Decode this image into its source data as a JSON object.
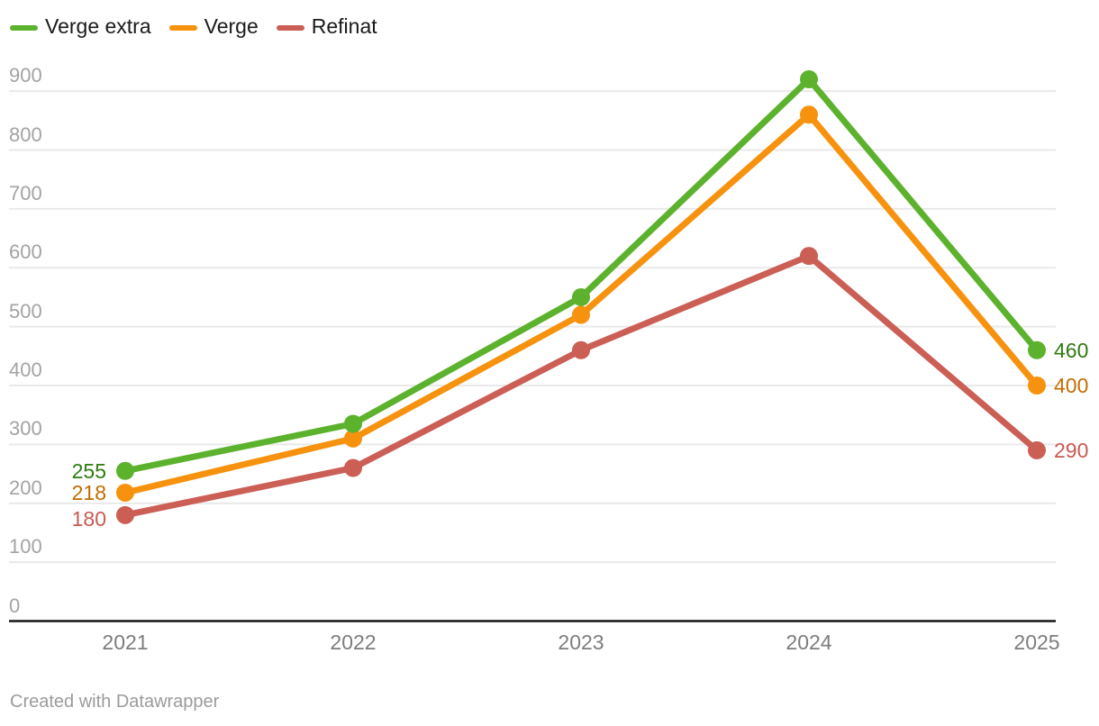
{
  "chart_data": {
    "type": "line",
    "x": [
      "2021",
      "2022",
      "2023",
      "2024",
      "2025"
    ],
    "series": [
      {
        "name": "Verge extra",
        "color": "#5cb22d",
        "label_color": "#2e7c10",
        "values": [
          255,
          335,
          550,
          920,
          460
        ],
        "first_label": "255",
        "last_label": "460"
      },
      {
        "name": "Verge",
        "color": "#f6920e",
        "label_color": "#c16d00",
        "values": [
          218,
          310,
          520,
          860,
          400
        ],
        "first_label": "218",
        "last_label": "400"
      },
      {
        "name": "Refinat",
        "color": "#cb5f56",
        "label_color": "#c85a52",
        "values": [
          180,
          260,
          460,
          620,
          290
        ],
        "first_label": "180",
        "last_label": "290"
      }
    ],
    "yticks": [
      0,
      100,
      200,
      300,
      400,
      500,
      600,
      700,
      800,
      900
    ],
    "ylim": [
      0,
      940
    ],
    "xlabel": "",
    "ylabel": "",
    "title": "",
    "grid": true,
    "legend_position": "top-left",
    "colors": {
      "gridline": "#e9e9e9",
      "baseline": "#161616",
      "ytick_text": "#a3a3a3",
      "xtick_text": "#7d7d7d",
      "legend_text": "#1a1a1a"
    }
  },
  "footer": {
    "credit": "Created with Datawrapper"
  }
}
